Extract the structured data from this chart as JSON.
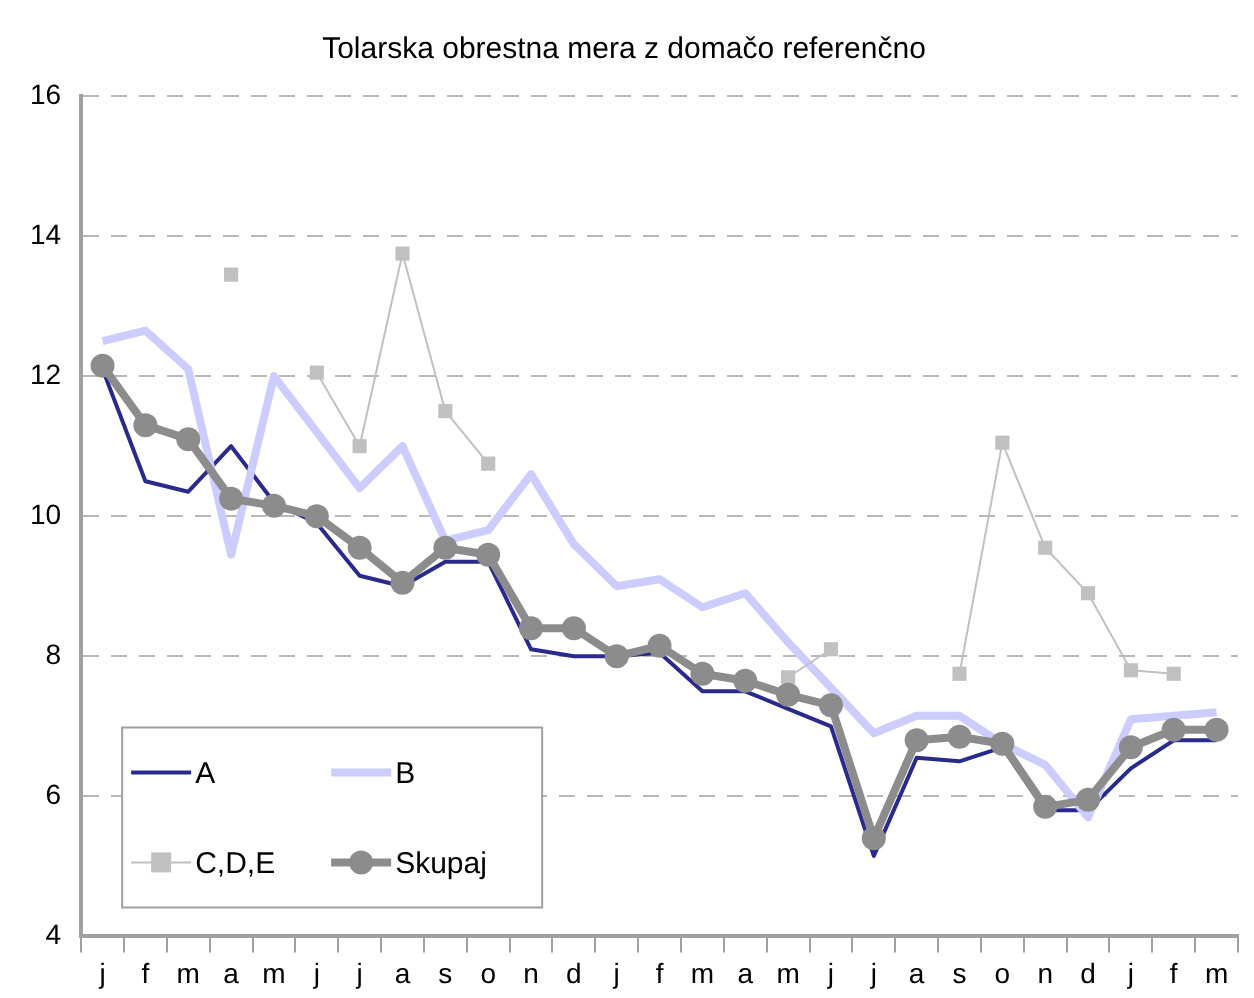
{
  "chart_data": {
    "type": "line",
    "title": "Tolarska obrestna mera z domačo referenčno",
    "categories": [
      "j",
      "f",
      "m",
      "a",
      "m",
      "j",
      "j",
      "a",
      "s",
      "o",
      "n",
      "d",
      "j",
      "f",
      "m",
      "a",
      "m",
      "j",
      "j",
      "a",
      "s",
      "o",
      "n",
      "d",
      "j",
      "f",
      "m"
    ],
    "ylim": [
      4,
      16
    ],
    "yticks": [
      4,
      6,
      8,
      10,
      12,
      14,
      16
    ],
    "grid": "y",
    "legend": "bottom left",
    "series": [
      {
        "name": "A",
        "color": "#2a2a8c",
        "marker": "none",
        "values": [
          12.1,
          10.5,
          10.35,
          11.0,
          10.2,
          9.9,
          9.15,
          9.0,
          9.35,
          9.35,
          8.1,
          8.0,
          8.0,
          8.05,
          7.5,
          7.5,
          7.25,
          7.0,
          5.15,
          6.55,
          6.5,
          6.7,
          5.8,
          5.8,
          6.4,
          6.8,
          6.8
        ]
      },
      {
        "name": "B",
        "color": "#ccccff",
        "marker": "none",
        "values": [
          12.5,
          12.65,
          12.1,
          9.45,
          12.0,
          11.2,
          10.4,
          11.0,
          9.65,
          9.8,
          10.6,
          9.6,
          9.0,
          9.1,
          8.7,
          8.9,
          8.2,
          7.55,
          6.9,
          7.15,
          7.15,
          6.75,
          6.45,
          5.7,
          7.1,
          7.15,
          7.2
        ]
      },
      {
        "name": "C,D,E",
        "color": "#c0c0c0",
        "marker": "square",
        "values": [
          null,
          null,
          null,
          13.45,
          null,
          12.05,
          11.0,
          13.75,
          11.5,
          10.75,
          null,
          null,
          null,
          null,
          null,
          null,
          7.7,
          8.1,
          null,
          null,
          7.75,
          11.05,
          9.55,
          8.9,
          7.8,
          7.75,
          null
        ]
      },
      {
        "name": "Skupaj",
        "color": "#8c8c8c",
        "marker": "circle",
        "values": [
          12.15,
          11.3,
          11.1,
          10.25,
          10.15,
          10.0,
          9.55,
          9.05,
          9.55,
          9.45,
          8.4,
          8.4,
          8.0,
          8.15,
          7.75,
          7.65,
          7.45,
          7.3,
          5.4,
          6.8,
          6.85,
          6.75,
          5.85,
          5.95,
          6.7,
          6.95,
          6.95
        ]
      }
    ]
  }
}
